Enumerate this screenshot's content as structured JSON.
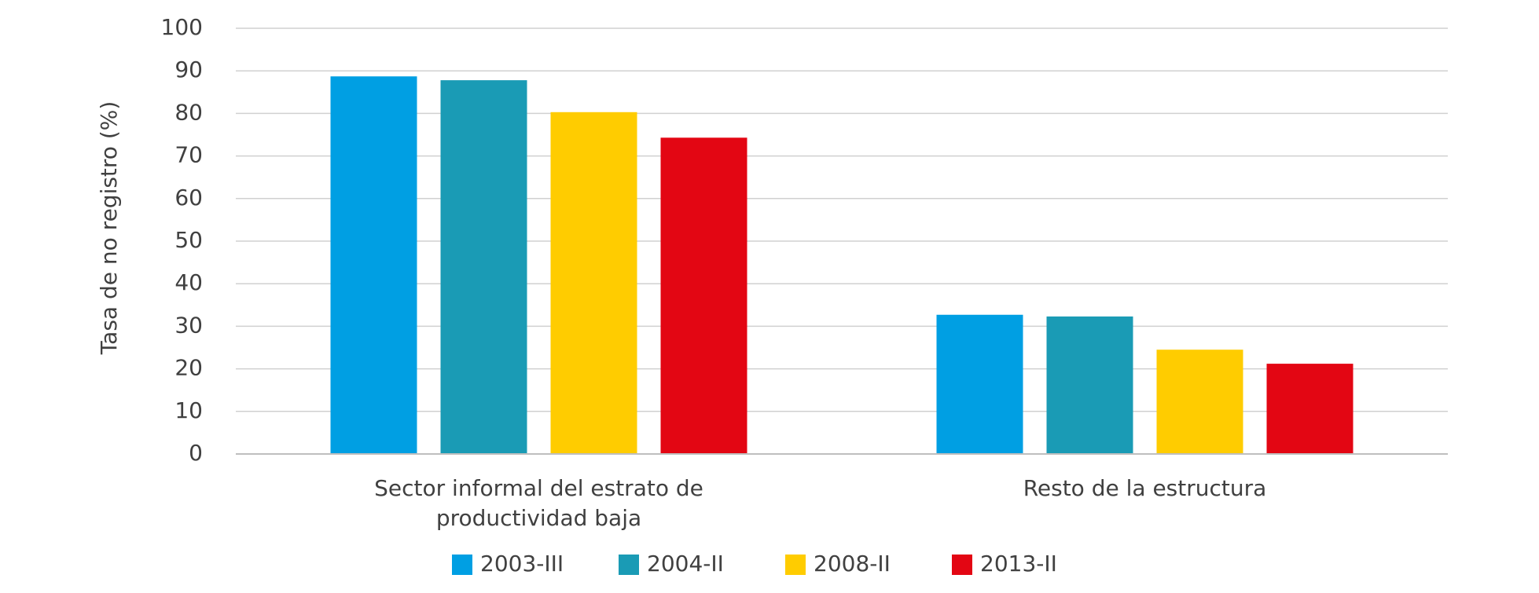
{
  "chart_data": {
    "type": "bar",
    "y_label": "Tasa de no registro (%)",
    "categories": [
      "Sector informal del estrato de productividad baja",
      "Resto de la estructura"
    ],
    "series": [
      {
        "name": "2003-III",
        "color": "#009fe3",
        "values": [
          88.7,
          32.7
        ]
      },
      {
        "name": "2004-II",
        "color": "#1a9bb5",
        "values": [
          87.8,
          32.3
        ]
      },
      {
        "name": "2008-II",
        "color": "#ffcc00",
        "values": [
          80.3,
          24.5
        ]
      },
      {
        "name": "2013-II",
        "color": "#e30613",
        "values": [
          74.3,
          21.2
        ]
      }
    ],
    "ylim": [
      0,
      100
    ],
    "yticks": [
      0,
      10,
      20,
      30,
      40,
      50,
      60,
      70,
      80,
      90,
      100
    ],
    "grid": true,
    "legend": "bottom"
  }
}
